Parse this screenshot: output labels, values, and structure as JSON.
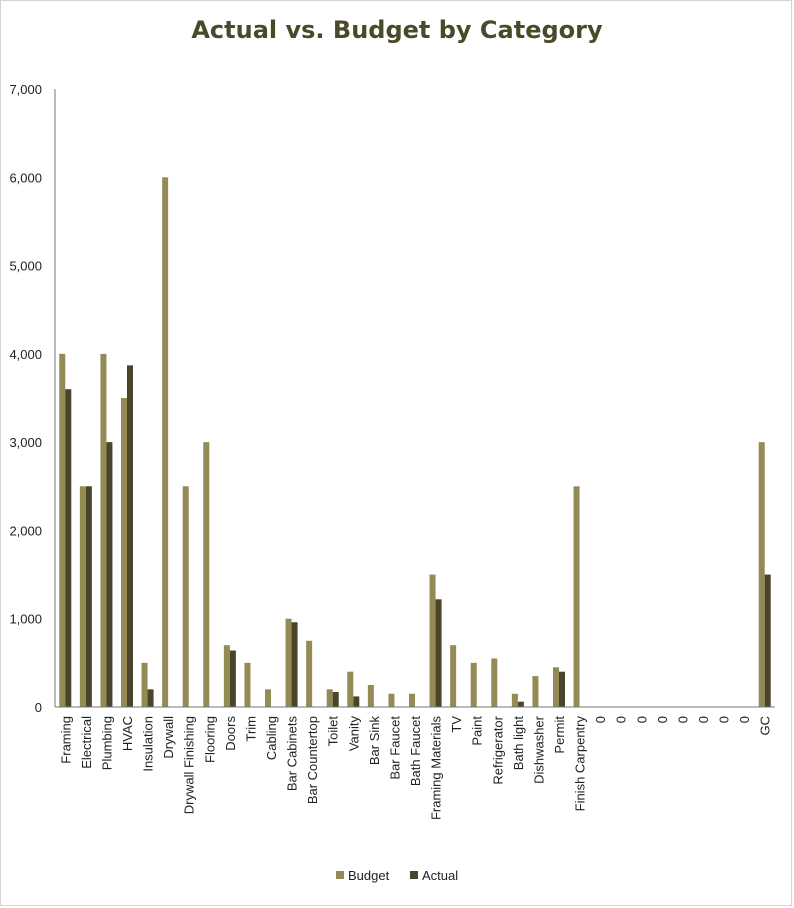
{
  "chart_data": {
    "type": "bar",
    "title": "Actual vs. Budget by Category",
    "xlabel": "",
    "ylabel": "",
    "ylim": [
      0,
      7000
    ],
    "yticks": [
      0,
      1000,
      2000,
      3000,
      4000,
      5000,
      6000,
      7000
    ],
    "ytick_labels": [
      "0",
      "1,000",
      "2,000",
      "3,000",
      "4,000",
      "5,000",
      "6,000",
      "7,000"
    ],
    "grid": false,
    "legend_position": "bottom",
    "categories": [
      "Framing",
      "Electrical",
      "Plumbing",
      "HVAC",
      "Insulation",
      "Drywall",
      "Drywall Finishing",
      "Flooring",
      "Doors",
      "Trim",
      "Cabling",
      "Bar Cabinets",
      "Bar Countertop",
      "Toilet",
      "Vanity",
      "Bar Sink",
      "Bar Faucet",
      "Bath Faucet",
      "Framing Materials",
      "TV",
      "Paint",
      "Refrigerator",
      "Bath light",
      "Dishwasher",
      "Permit",
      "Finish Carpentry",
      "0",
      "0",
      "0",
      "0",
      "0",
      "0",
      "0",
      "0",
      "GC"
    ],
    "series": [
      {
        "name": "Budget",
        "color": "#948a54",
        "values": [
          4000,
          2500,
          4000,
          3500,
          500,
          6000,
          2500,
          3000,
          700,
          500,
          200,
          1000,
          750,
          200,
          400,
          250,
          150,
          150,
          1500,
          700,
          500,
          550,
          150,
          350,
          450,
          2500,
          0,
          0,
          0,
          0,
          0,
          0,
          0,
          0,
          3000
        ]
      },
      {
        "name": "Actual",
        "color": "#4a452a",
        "values": [
          3600,
          2500,
          3000,
          3870,
          200,
          0,
          0,
          0,
          640,
          0,
          0,
          960,
          0,
          170,
          120,
          0,
          0,
          0,
          1220,
          0,
          0,
          0,
          60,
          0,
          400,
          0,
          0,
          0,
          0,
          0,
          0,
          0,
          0,
          0,
          1500
        ]
      }
    ]
  }
}
